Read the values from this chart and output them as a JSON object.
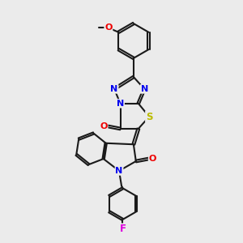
{
  "background_color": "#ebebeb",
  "bond_color": "#1a1a1a",
  "bond_width": 1.5,
  "atom_colors": {
    "N": "#0000ee",
    "O": "#ee0000",
    "S": "#bbbb00",
    "F": "#dd00dd",
    "C": "#1a1a1a"
  },
  "fig_width": 3.0,
  "fig_height": 3.0,
  "dpi": 100
}
